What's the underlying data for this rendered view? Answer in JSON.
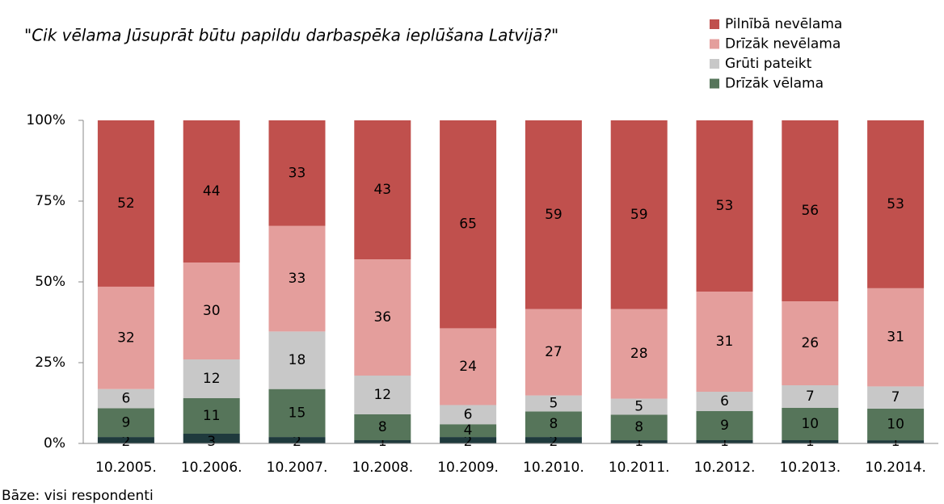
{
  "chart_data": {
    "type": "bar",
    "stacked": "percent",
    "title": "\"Cik vēlama Jūsuprāt būtu papildu darbaspēka ieplūšana Latvijā?\"",
    "footnote": "Bāze: visi respondenti",
    "categories": [
      "10.2005.",
      "10.2006.",
      "10.2007.",
      "10.2008.",
      "10.2009.",
      "10.2010.",
      "10.2011.",
      "10.2012.",
      "10.2013.",
      "10.2014."
    ],
    "series": [
      {
        "color": "#1f3a3d",
        "values": [
          2,
          3,
          2,
          1,
          2,
          2,
          1,
          1,
          1,
          1
        ]
      },
      {
        "name": "Drīzāk vēlama",
        "color": "#56755a",
        "values": [
          9,
          11,
          15,
          8,
          4,
          8,
          8,
          9,
          10,
          10
        ]
      },
      {
        "name": "Grūti pateikt",
        "color": "#c8c8c8",
        "values": [
          6,
          12,
          18,
          12,
          6,
          5,
          5,
          6,
          7,
          7
        ]
      },
      {
        "name": "Drīzāk nevēlama",
        "color": "#e49e9c",
        "values": [
          32,
          30,
          33,
          36,
          24,
          27,
          28,
          31,
          26,
          31
        ]
      },
      {
        "name": "Pilnībā nevēlama",
        "color": "#c0504d",
        "values": [
          52,
          44,
          33,
          43,
          65,
          59,
          59,
          53,
          56,
          53
        ]
      }
    ],
    "ylim": [
      0,
      100
    ],
    "yticks": [
      {
        "value": 0,
        "label": "0%"
      },
      {
        "value": 25,
        "label": "25%"
      },
      {
        "value": 50,
        "label": "50%"
      },
      {
        "value": 75,
        "label": "75%"
      },
      {
        "value": 100,
        "label": "100%"
      }
    ],
    "legend": "top-right"
  }
}
